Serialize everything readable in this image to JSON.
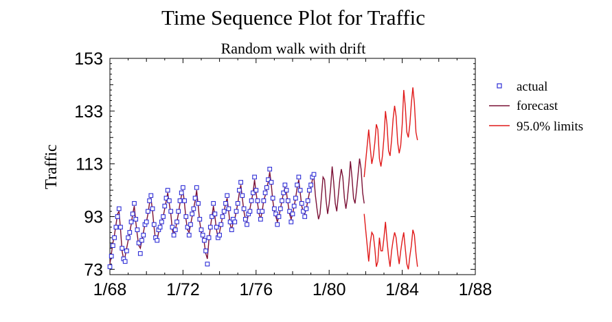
{
  "chart_data": {
    "type": "line",
    "title": "Time Sequence Plot for Traffic",
    "subtitle": "Random walk with drift",
    "ylabel": "Traffic",
    "xlabel": "",
    "xlim": [
      1968,
      1988
    ],
    "ylim": [
      71,
      153
    ],
    "y_ticks": [
      73,
      93,
      113,
      133,
      153
    ],
    "y_tick_labels": [
      "73",
      "93",
      "113",
      "133",
      "153"
    ],
    "x_ticks": [
      1968,
      1972,
      1976,
      1980,
      1984,
      1988
    ],
    "x_tick_labels": [
      "1/68",
      "1/72",
      "1/76",
      "1/80",
      "1/84",
      "1/88"
    ],
    "grid": false,
    "legend_position": "right",
    "series": [
      {
        "name": "actual",
        "style": "square-markers",
        "color": "#2b2bd6",
        "x_start": 1968,
        "x_step": 0.0833333,
        "values": [
          74,
          78,
          82,
          85,
          89,
          93,
          96,
          89,
          81,
          77,
          76,
          80,
          85,
          87,
          91,
          94,
          98,
          92,
          88,
          83,
          79,
          84,
          86,
          90,
          91,
          95,
          99,
          101,
          96,
          90,
          85,
          84,
          88,
          89,
          91,
          93,
          97,
          100,
          103,
          99,
          95,
          89,
          86,
          88,
          91,
          95,
          99,
          102,
          104,
          99,
          93,
          89,
          86,
          90,
          94,
          96,
          100,
          104,
          98,
          92,
          88,
          86,
          84,
          80,
          75,
          85,
          89,
          93,
          98,
          94,
          89,
          85,
          86,
          90,
          93,
          95,
          98,
          101,
          96,
          91,
          88,
          92,
          91,
          95,
          98,
          103,
          106,
          101,
          96,
          92,
          90,
          94,
          95,
          99,
          102,
          108,
          103,
          99,
          95,
          92,
          95,
          99,
          102,
          104,
          107,
          111,
          106,
          100,
          96,
          94,
          90,
          93,
          96,
          99,
          102,
          105,
          103,
          99,
          95,
          91,
          94,
          97,
          100,
          105,
          108,
          103,
          98,
          95,
          93,
          96,
          99,
          103,
          105,
          108,
          109
        ]
      },
      {
        "name": "forecast",
        "style": "line",
        "color": "#7a1035",
        "x_start": 1968,
        "x_step": 0.0833333,
        "values": [
          75,
          79,
          83,
          86,
          90,
          94,
          95,
          88,
          80,
          77,
          78,
          81,
          84,
          87,
          90,
          94,
          97,
          91,
          86,
          82,
          81,
          84,
          87,
          90,
          91,
          94,
          98,
          100,
          95,
          89,
          84,
          84,
          87,
          89,
          91,
          93,
          96,
          99,
          102,
          98,
          94,
          88,
          86,
          88,
          91,
          94,
          98,
          101,
          103,
          98,
          92,
          88,
          87,
          90,
          93,
          96,
          99,
          103,
          97,
          91,
          87,
          86,
          83,
          79,
          77,
          84,
          89,
          93,
          97,
          93,
          88,
          85,
          87,
          90,
          93,
          95,
          98,
          100,
          95,
          90,
          88,
          91,
          92,
          95,
          98,
          102,
          105,
          100,
          95,
          92,
          91,
          94,
          96,
          99,
          102,
          107,
          102,
          98,
          94,
          92,
          95,
          99,
          101,
          104,
          106,
          110,
          105,
          99,
          95,
          93,
          91,
          93,
          96,
          99,
          102,
          104,
          102,
          98,
          94,
          92,
          94,
          97,
          100,
          104,
          107,
          102,
          97,
          95,
          94,
          96,
          99,
          102,
          104,
          107,
          108,
          101,
          96,
          92,
          94,
          101,
          108,
          107,
          99,
          94,
          98,
          104,
          112,
          106,
          98,
          95,
          101,
          107,
          111,
          108,
          100,
          96,
          100,
          106,
          114,
          108,
          100,
          98,
          103,
          109,
          115,
          111,
          102,
          98
        ]
      },
      {
        "name": "95.0% limits",
        "style": "line",
        "color": "#e01818",
        "x_start": 1981.9167,
        "x_step": 0.0833333,
        "upper": [
          108,
          114,
          120,
          126,
          119,
          113,
          116,
          121,
          128,
          126,
          115,
          112,
          116,
          123,
          133,
          128,
          118,
          116,
          122,
          130,
          135,
          131,
          121,
          117,
          120,
          128,
          141,
          135,
          125,
          123,
          128,
          136,
          142,
          136,
          125,
          122
        ],
        "lower": [
          94,
          88,
          82,
          76,
          83,
          87,
          86,
          81,
          74,
          76,
          85,
          80,
          80,
          85,
          91,
          84,
          78,
          74,
          80,
          84,
          87,
          85,
          79,
          75,
          80,
          84,
          87,
          81,
          75,
          73,
          78,
          82,
          88,
          86,
          79,
          74
        ]
      }
    ]
  }
}
